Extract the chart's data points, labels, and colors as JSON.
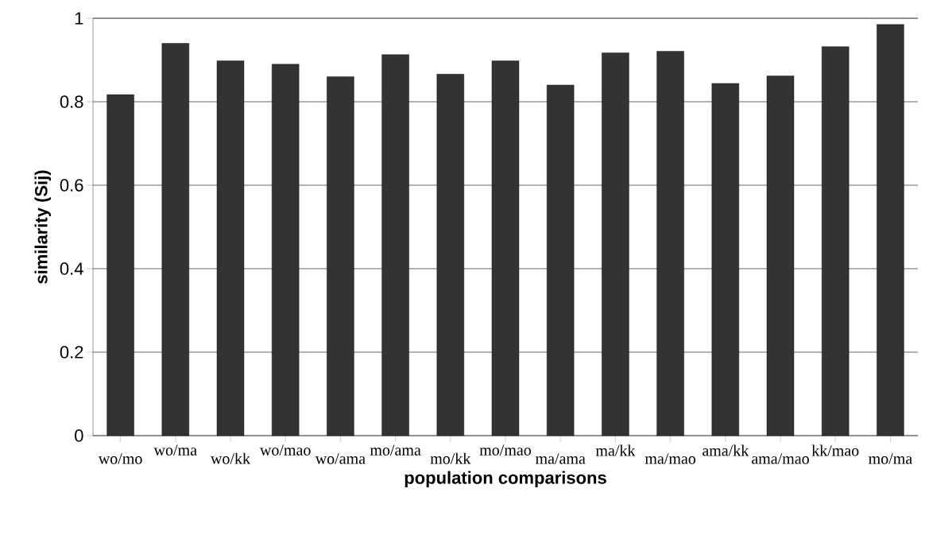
{
  "chart_data": {
    "type": "bar",
    "xlabel": "population comparisons",
    "ylabel": "similarity (Sij)",
    "categories": [
      "wo/mo",
      "wo/ma",
      "wo/kk",
      "wo/mao",
      "wo/ama",
      "mo/ama",
      "mo/kk",
      "mo/mao",
      "ma/ama",
      "ma/kk",
      "ma/mao",
      "ama/kk",
      "ama/mao",
      "kk/mao",
      "mo/ma"
    ],
    "values": [
      0.817,
      0.94,
      0.898,
      0.89,
      0.86,
      0.913,
      0.866,
      0.898,
      0.84,
      0.917,
      0.921,
      0.844,
      0.862,
      0.932,
      0.985
    ],
    "color": "#333333",
    "ylim": [
      0,
      1
    ],
    "yticks": [
      0,
      0.2,
      0.4,
      0.6,
      0.8,
      1
    ],
    "grid": "y"
  }
}
